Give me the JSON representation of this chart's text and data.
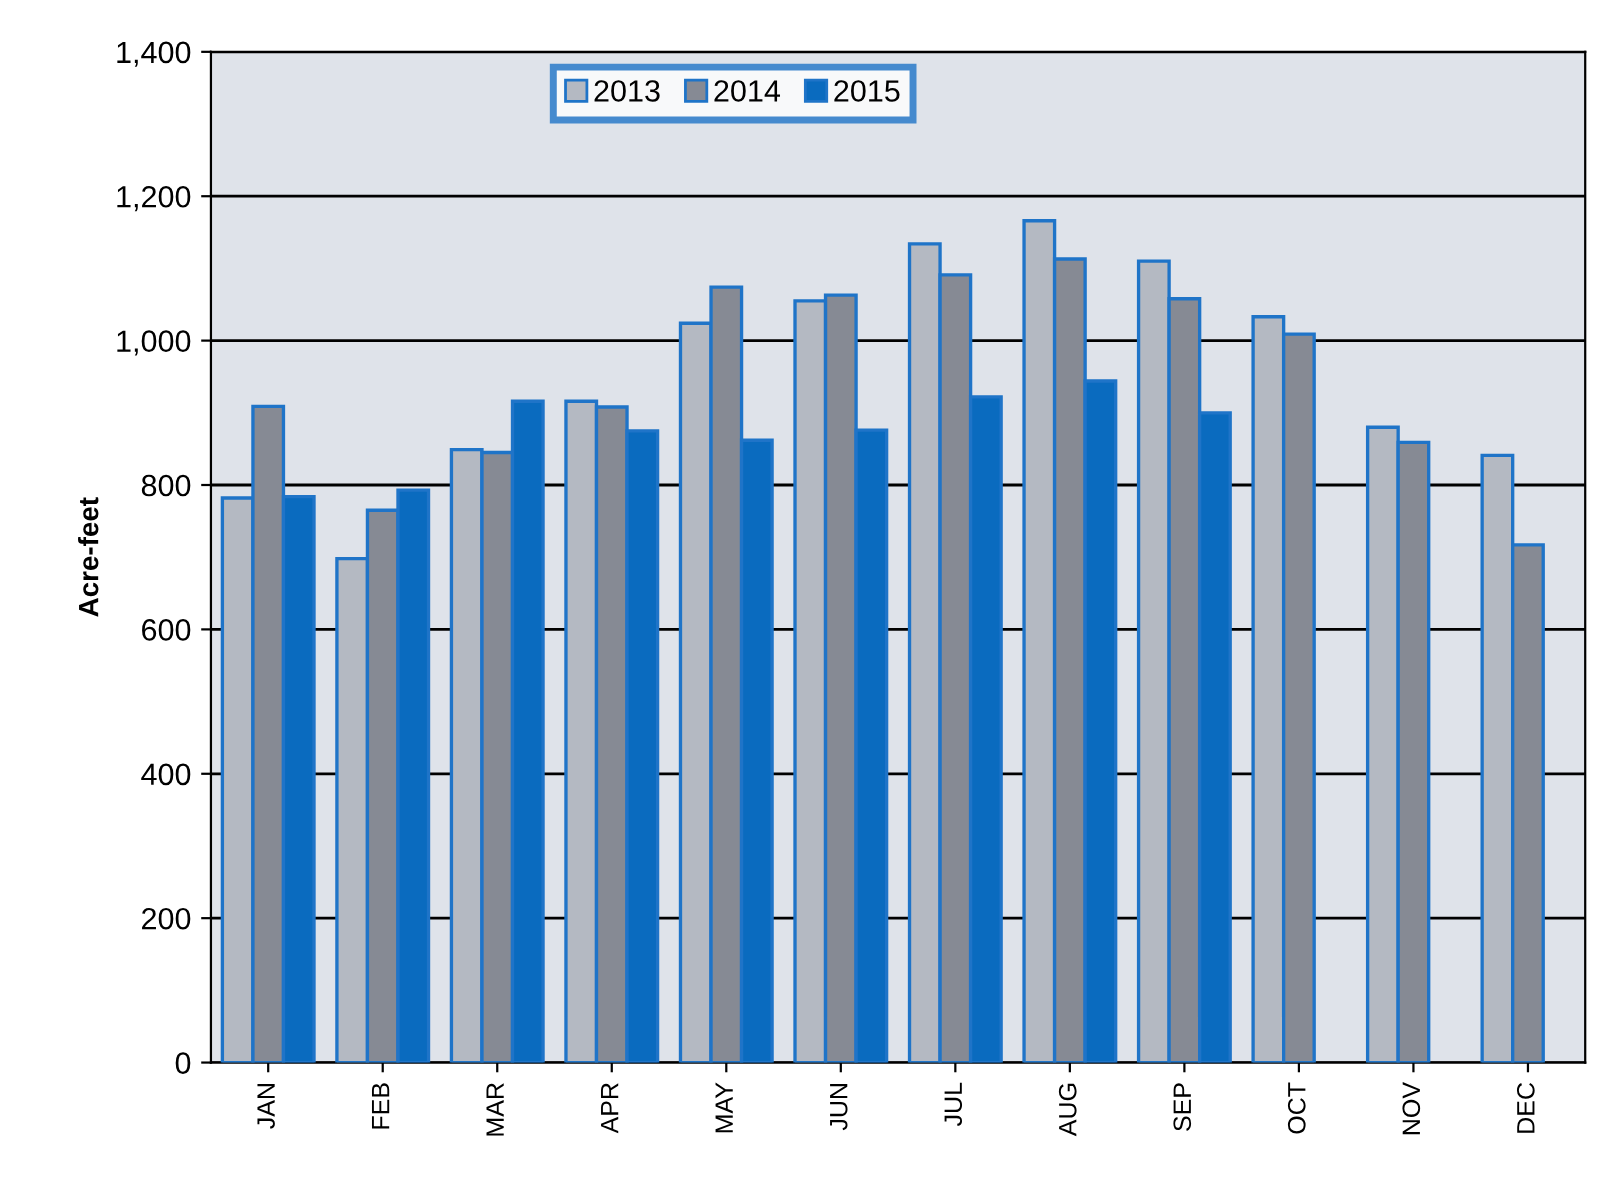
{
  "chart_data": {
    "type": "bar",
    "ylabel": "Acre-feet",
    "categories": [
      "JAN",
      "FEB",
      "MAR",
      "APR",
      "MAY",
      "JUN",
      "JUL",
      "AUG",
      "SEP",
      "OCT",
      "NOV",
      "DEC"
    ],
    "series": [
      {
        "name": "2013",
        "color": "#b4b9c2",
        "values": [
          782,
          698,
          849,
          916,
          1024,
          1055,
          1134,
          1166,
          1110,
          1033,
          880,
          841
        ]
      },
      {
        "name": "2014",
        "color": "#868a94",
        "values": [
          909,
          765,
          845,
          908,
          1074,
          1063,
          1091,
          1113,
          1058,
          1009,
          859,
          717
        ]
      },
      {
        "name": "2015",
        "color": "#0a6bbf",
        "values": [
          784,
          793,
          916,
          875,
          862,
          876,
          922,
          944,
          900,
          null,
          null,
          null
        ]
      }
    ],
    "ylim": [
      0,
      1400
    ],
    "yticks": [
      0,
      200,
      400,
      600,
      800,
      {
        "value": 1000,
        "label": "1,000"
      },
      {
        "value": 1200,
        "label": "1,200"
      },
      {
        "value": 1400,
        "label": "1,400"
      }
    ],
    "grid": "y",
    "legend": "top"
  }
}
